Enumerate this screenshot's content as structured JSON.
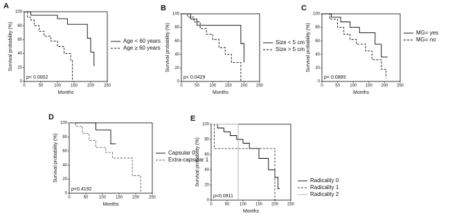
{
  "chart_data": [
    {
      "type": "step",
      "panel": "A",
      "xlabel": "Months",
      "ylabel": "Survival probability (%)",
      "annotation": "p< 0.0002",
      "xlim": [
        0,
        250
      ],
      "ylim": [
        0,
        100
      ],
      "xticks": [
        0,
        50,
        100,
        150,
        200,
        250
      ],
      "yticks": [
        0,
        20,
        40,
        60,
        80,
        100
      ],
      "series": [
        {
          "name": "Age < 60 years",
          "color": "#000000",
          "dash": false,
          "x": [
            0,
            20,
            100,
            130,
            190,
            200,
            210
          ],
          "values": [
            100,
            95,
            90,
            82,
            62,
            42,
            22
          ]
        },
        {
          "name": "Age ≥ 60 years",
          "color": "#000000",
          "dash": true,
          "x": [
            0,
            10,
            20,
            30,
            45,
            60,
            80,
            100,
            120,
            140,
            145
          ],
          "values": [
            100,
            92,
            88,
            80,
            72,
            65,
            58,
            50,
            40,
            30,
            0
          ]
        }
      ]
    },
    {
      "type": "step",
      "panel": "B",
      "xlabel": "Months",
      "ylabel": "Survival probability (%)",
      "annotation": "p< 0.0429",
      "xlim": [
        0,
        250
      ],
      "ylim": [
        0,
        100
      ],
      "xticks": [
        0,
        50,
        100,
        150,
        200,
        250
      ],
      "yticks": [
        0,
        20,
        40,
        60,
        80,
        100
      ],
      "series": [
        {
          "name": "Size < 5 cm",
          "color": "#000000",
          "dash": false,
          "x": [
            0,
            30,
            50,
            190,
            200
          ],
          "values": [
            100,
            92,
            83,
            56,
            28
          ]
        },
        {
          "name": "Size > 5 cm",
          "color": "#000000",
          "dash": true,
          "x": [
            0,
            20,
            40,
            60,
            80,
            100,
            120,
            140,
            160,
            190
          ],
          "values": [
            100,
            95,
            88,
            78,
            70,
            62,
            50,
            40,
            28,
            0
          ]
        }
      ]
    },
    {
      "type": "step",
      "panel": "C",
      "xlabel": "Months",
      "ylabel": "Survival probability (%)",
      "annotation": "p< 0.0889",
      "xlim": [
        0,
        250
      ],
      "ylim": [
        0,
        100
      ],
      "xticks": [
        0,
        50,
        100,
        150,
        200,
        250
      ],
      "yticks": [
        0,
        20,
        40,
        60,
        80,
        100
      ],
      "series": [
        {
          "name": "MG= yes",
          "color": "#000000",
          "dash": false,
          "x": [
            0,
            30,
            60,
            90,
            120,
            170,
            190,
            210
          ],
          "values": [
            100,
            95,
            88,
            80,
            72,
            55,
            36,
            36
          ]
        },
        {
          "name": "MG= no",
          "color": "#000000",
          "dash": true,
          "x": [
            0,
            25,
            50,
            70,
            90,
            110,
            140,
            160,
            190,
            205
          ],
          "values": [
            100,
            92,
            80,
            70,
            62,
            55,
            45,
            32,
            18,
            5
          ]
        }
      ]
    },
    {
      "type": "step",
      "panel": "D",
      "xlabel": "Months",
      "ylabel": "Survival probability (%)",
      "annotation": "p<0.4192",
      "xlim": [
        0,
        250
      ],
      "ylim": [
        0,
        100
      ],
      "xticks": [
        0,
        50,
        100,
        150,
        200,
        250
      ],
      "yticks": [
        0,
        20,
        40,
        60,
        80,
        100
      ],
      "series": [
        {
          "name": "Capsular 0",
          "color": "#000000",
          "dash": false,
          "x": [
            0,
            80,
            125,
            140
          ],
          "values": [
            100,
            90,
            70,
            70
          ]
        },
        {
          "name": "Extra-capsular 1",
          "color": "#555555",
          "dash": true,
          "x": [
            0,
            20,
            40,
            60,
            80,
            110,
            130,
            180,
            190,
            215
          ],
          "values": [
            100,
            95,
            85,
            75,
            65,
            58,
            50,
            50,
            25,
            0
          ]
        }
      ]
    },
    {
      "type": "step",
      "panel": "E",
      "xlabel": "Months",
      "ylabel": "Survival probability (%)",
      "annotation": "p<0.0911",
      "xlim": [
        0,
        250
      ],
      "ylim": [
        0,
        100
      ],
      "xticks": [
        0,
        50,
        100,
        150,
        200,
        250
      ],
      "yticks": [
        0,
        20,
        40,
        60,
        80,
        100
      ],
      "series": [
        {
          "name": "Radicality 0",
          "color": "#000000",
          "dash": false,
          "x": [
            0,
            20,
            40,
            60,
            80,
            100,
            120,
            150,
            180,
            200,
            210,
            215
          ],
          "values": [
            100,
            95,
            90,
            85,
            80,
            75,
            68,
            55,
            40,
            30,
            15,
            15
          ]
        },
        {
          "name": "Radicality 1",
          "color": "#333333",
          "dash": true,
          "x": [
            0,
            10,
            195,
            200
          ],
          "values": [
            100,
            68,
            68,
            0
          ]
        },
        {
          "name": "Radicality 2",
          "color": "#aaaaaa",
          "dash": false,
          "x": [
            0,
            80,
            85
          ],
          "values": [
            100,
            100,
            0
          ]
        }
      ]
    }
  ]
}
